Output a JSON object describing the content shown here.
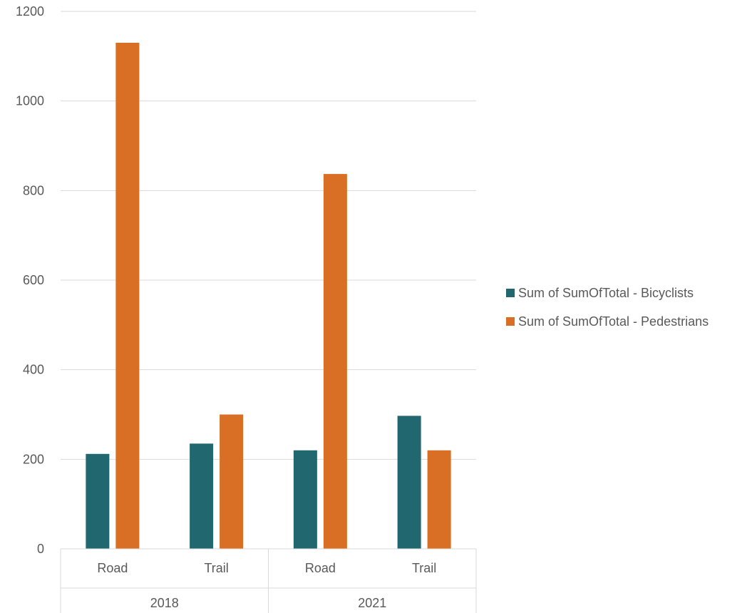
{
  "chart_data": {
    "type": "bar",
    "groups": [
      {
        "label": "2018",
        "categories": [
          "Road",
          "Trail"
        ]
      },
      {
        "label": "2021",
        "categories": [
          "Road",
          "Trail"
        ]
      }
    ],
    "series": [
      {
        "name": "Sum of SumOfTotal - Bicyclists",
        "color": "#206770",
        "values": [
          212,
          235,
          220,
          297
        ]
      },
      {
        "name": "Sum of SumOfTotal - Pedestrians",
        "color": "#D86F24",
        "values": [
          1130,
          300,
          837,
          220
        ]
      }
    ],
    "ylim": [
      0,
      1200
    ],
    "yticks": [
      0,
      200,
      400,
      600,
      800,
      1000,
      1200
    ],
    "grid": true,
    "legend_position": "right",
    "title": "",
    "xlabel": "",
    "ylabel": ""
  }
}
